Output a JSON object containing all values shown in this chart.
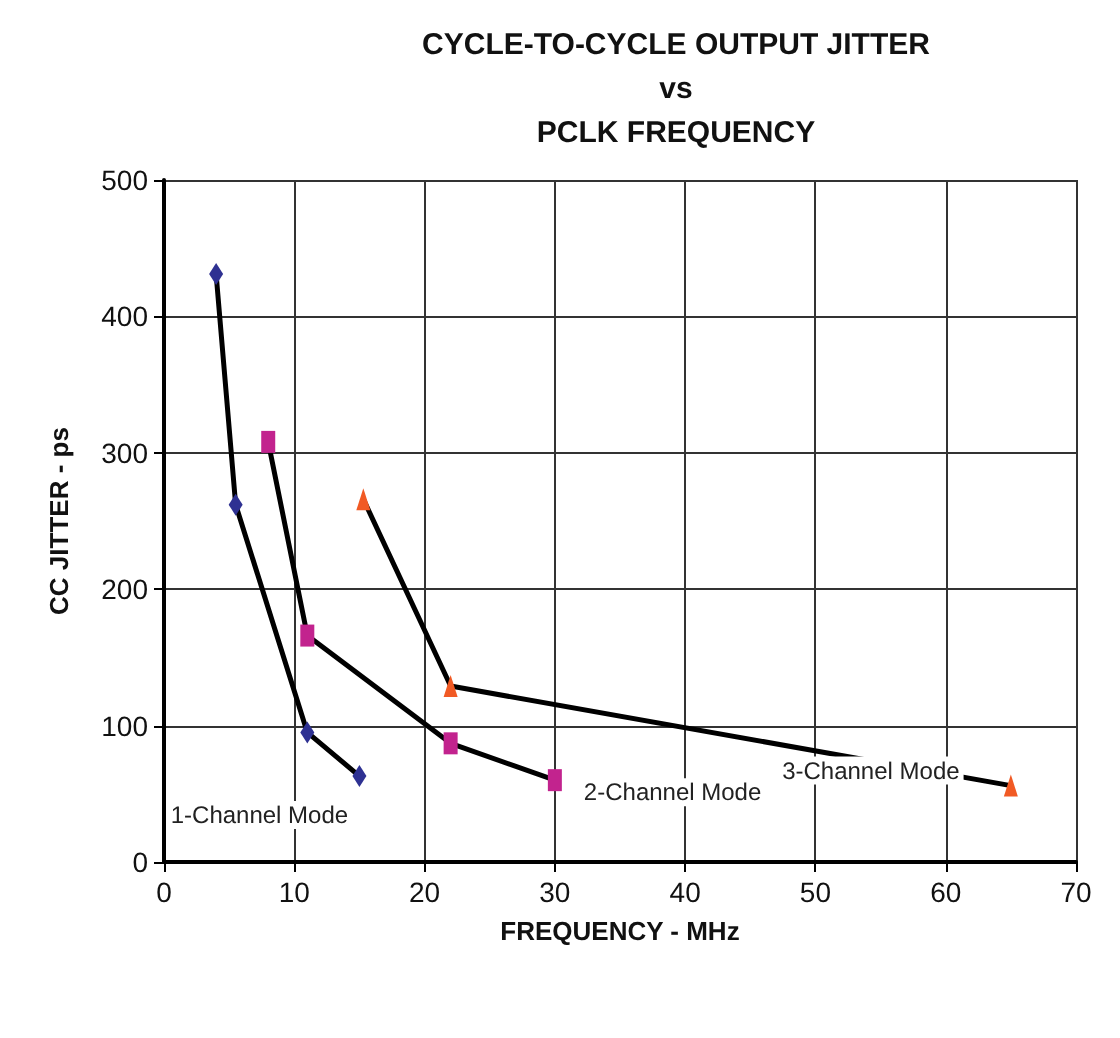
{
  "chart_data": {
    "type": "line",
    "title": "CYCLE-TO-CYCLE OUTPUT JITTER\nvs\nPCLK FREQUENCY",
    "xlabel": "FREQUENCY - MHz",
    "ylabel": "CC JITTER - ps",
    "xlim": [
      0,
      70
    ],
    "xticks": [
      0,
      10,
      20,
      30,
      40,
      50,
      60,
      70
    ],
    "ylim": [
      0,
      500
    ],
    "yticks": [
      0,
      100,
      200,
      300,
      400,
      500
    ],
    "grid": true,
    "legend": false,
    "series": [
      {
        "name": "1-Channel Mode",
        "color": "#2e3192",
        "marker": "diamond",
        "x": [
          4,
          5.5,
          11,
          15
        ],
        "values": [
          431,
          262,
          95,
          63
        ]
      },
      {
        "name": "2-Channel Mode",
        "color": "#c2238e",
        "marker": "square",
        "x": [
          8,
          11,
          22,
          30
        ],
        "values": [
          308,
          166,
          87,
          60
        ]
      },
      {
        "name": "3-Channel Mode",
        "color": "#f15a24",
        "marker": "triangle",
        "x": [
          15.3,
          22,
          65
        ],
        "values": [
          266,
          129,
          56
        ]
      }
    ]
  }
}
